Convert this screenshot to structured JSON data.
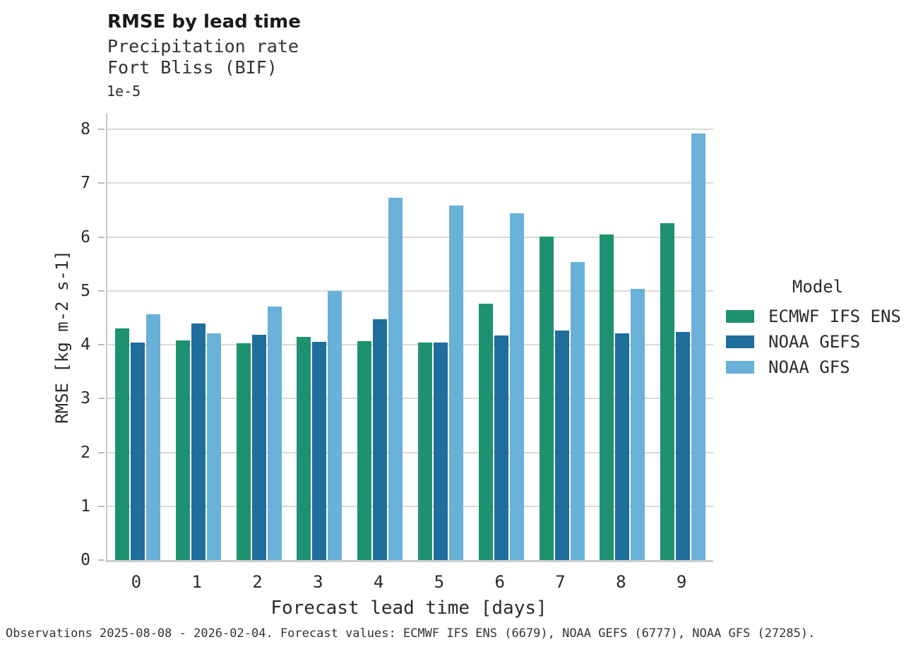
{
  "header": {
    "title": "RMSE by lead time",
    "subtitle_variable": "Precipitation rate",
    "subtitle_location": "Fort Bliss (BIF)"
  },
  "axes": {
    "y": {
      "label": "RMSE [kg m-2 s-1]",
      "offset_label": "1e-5",
      "ticks": [
        0,
        1,
        2,
        3,
        4,
        5,
        6,
        7,
        8
      ]
    },
    "x": {
      "label": "Forecast lead time [days]"
    }
  },
  "legend": {
    "title": "Model"
  },
  "footer": {
    "text": "Observations 2025-08-08 - 2026-02-04. Forecast values: ECMWF IFS ENS (6679), NOAA GEFS (6777), NOAA GFS (27285)."
  },
  "chart_data": {
    "type": "bar",
    "title": "RMSE by lead time",
    "subtitle": "Precipitation rate, Fort Bliss (BIF)",
    "xlabel": "Forecast lead time [days]",
    "ylabel": "RMSE [kg m-2 s-1]",
    "y_scale_factor": "1e-5",
    "ylim": [
      0,
      8
    ],
    "grid": true,
    "legend_position": "right",
    "categories": [
      "0",
      "1",
      "2",
      "3",
      "4",
      "5",
      "6",
      "7",
      "8",
      "9"
    ],
    "series": [
      {
        "name": "ECMWF IFS ENS",
        "color": "#1e9270",
        "values": [
          4.3,
          4.08,
          4.02,
          4.14,
          4.06,
          4.04,
          4.76,
          6.01,
          6.04,
          6.25
        ]
      },
      {
        "name": "NOAA GEFS",
        "color": "#1f6e9c",
        "values": [
          4.04,
          4.39,
          4.18,
          4.05,
          4.47,
          4.04,
          4.17,
          4.26,
          4.21,
          4.24
        ]
      },
      {
        "name": "NOAA GFS",
        "color": "#69b1d8",
        "values": [
          4.56,
          4.21,
          4.71,
          5.0,
          6.73,
          6.58,
          6.44,
          5.53,
          5.03,
          7.92
        ]
      }
    ]
  },
  "style": {
    "gridline_color": "#d9d9d9",
    "spine_color": "#cccccc",
    "text_color": "#2b2b2b"
  }
}
